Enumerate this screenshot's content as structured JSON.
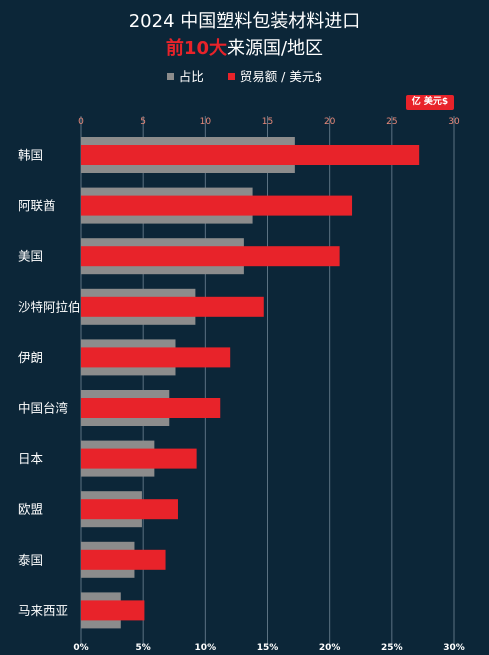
{
  "title": {
    "line1": "2024 中国塑料包装材料进口",
    "line2_highlight": "前10大",
    "line2_rest": "来源国/地区"
  },
  "legend": {
    "share": "占比",
    "amount": "贸易额 / 美元$"
  },
  "unit_badge": "亿 美元$",
  "colors": {
    "background": "#0c2638",
    "amount_bar": "#e8232a",
    "share_bar": "#8c8c8c",
    "grid": "#5c7282",
    "accent": "#e8232a"
  },
  "chart_data": {
    "type": "bar",
    "orientation": "horizontal",
    "categories": [
      "韩国",
      "阿联酋",
      "美国",
      "沙特阿拉伯",
      "伊朗",
      "中国台湾",
      "日本",
      "欧盟",
      "泰国",
      "马来西亚"
    ],
    "series": [
      {
        "name": "贸易额 / 美元$",
        "axis": "top",
        "unit": "亿 美元$",
        "values": [
          27.2,
          21.8,
          20.8,
          14.7,
          12.0,
          11.2,
          9.3,
          7.8,
          6.8,
          5.1
        ]
      },
      {
        "name": "占比",
        "axis": "bottom",
        "unit": "%",
        "values": [
          17.2,
          13.8,
          13.1,
          9.2,
          7.6,
          7.1,
          5.9,
          4.9,
          4.3,
          3.2
        ]
      }
    ],
    "top_axis": {
      "range": [
        0,
        30
      ],
      "ticks": [
        "0",
        "5",
        "10",
        "15",
        "20",
        "25",
        "30"
      ]
    },
    "bottom_axis": {
      "range": [
        0,
        30
      ],
      "ticks": [
        "0%",
        "5%",
        "10%",
        "15%",
        "20%",
        "25%",
        "30%"
      ]
    },
    "grid": true,
    "legend_position": "top"
  }
}
